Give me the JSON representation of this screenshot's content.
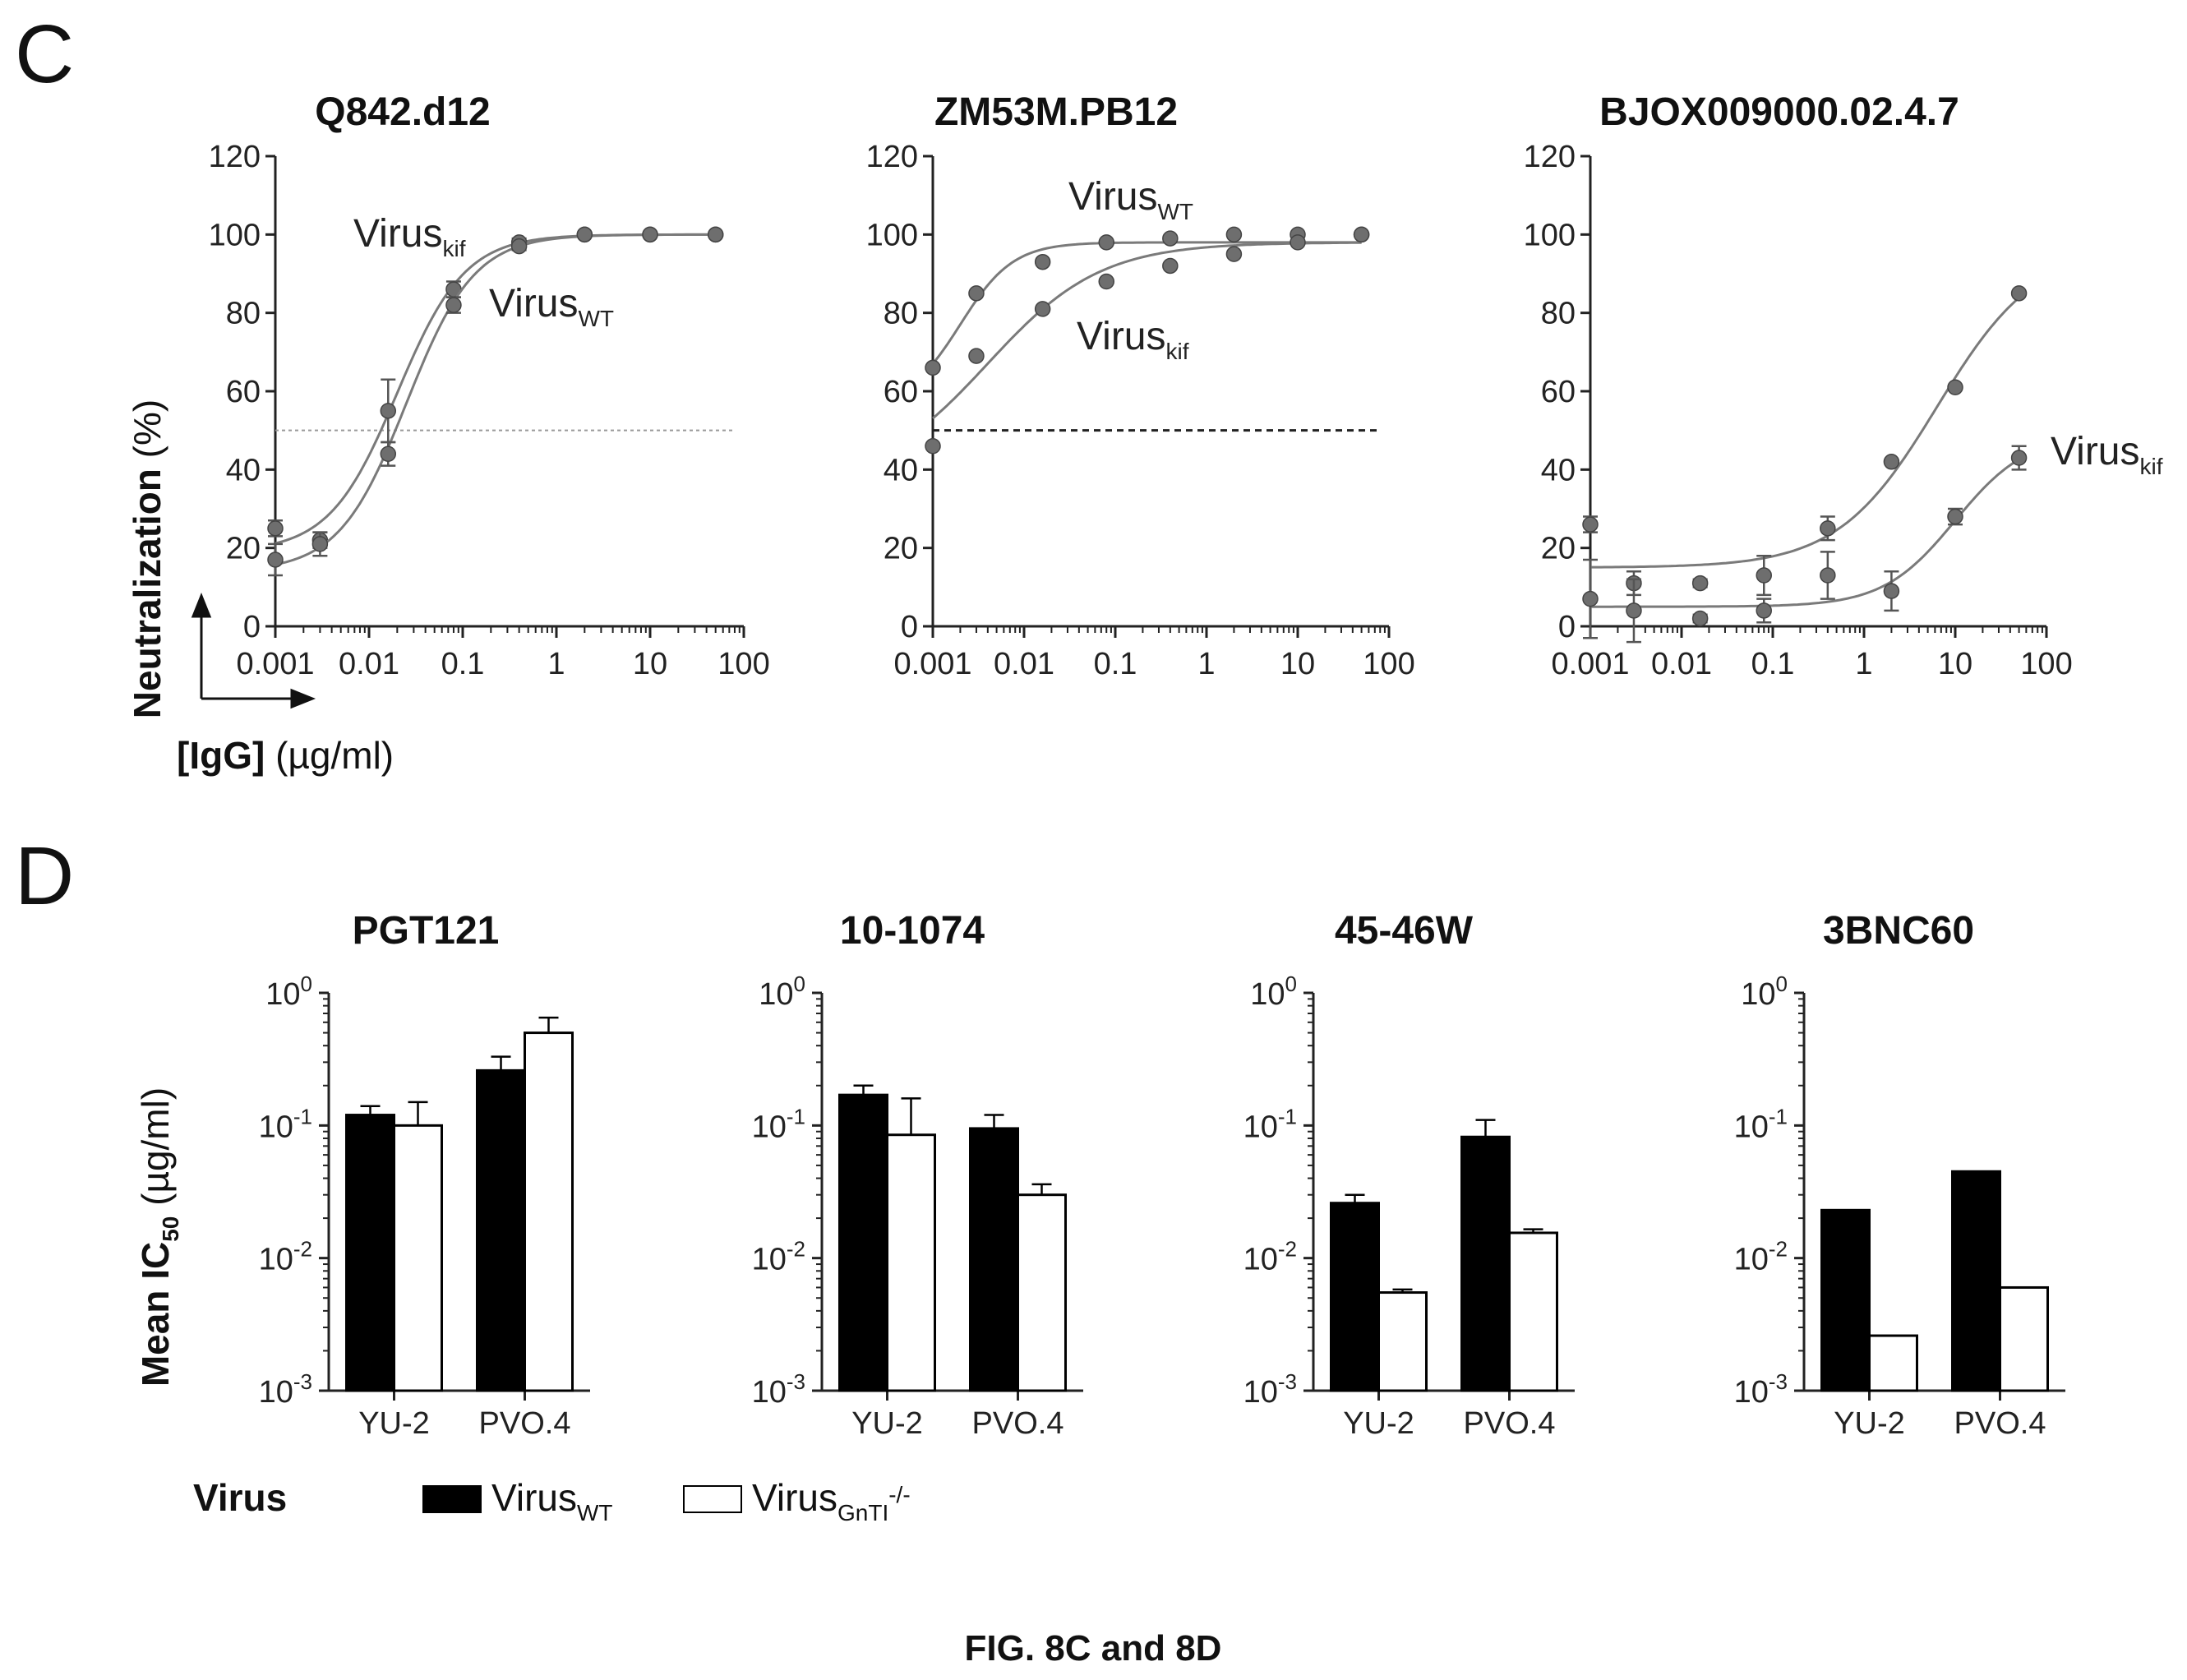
{
  "figure_caption": "FIG. 8C and 8D",
  "panel_c": {
    "letter": "C",
    "ylabel_bold": "Neutralization",
    "ylabel_unit": " (%)",
    "xlabel_bold": "[IgG]",
    "xlabel_unit": " (µg/ml)"
  },
  "panel_d": {
    "letter": "D",
    "ylabel_main": "Mean IC",
    "ylabel_sub": "50",
    "ylabel_unit": " (µg/ml)",
    "legend": {
      "title": "Virus",
      "items": [
        {
          "base": "Virus",
          "sub": "WT",
          "sup": "",
          "color": "#000000"
        },
        {
          "base": "Virus",
          "sub": "GnTI",
          "sup": "-/-",
          "color": "#ffffff"
        }
      ]
    }
  },
  "chart_data": [
    {
      "type": "scatter",
      "panel": "C",
      "title": "Q842.d12",
      "xscale": "log",
      "xlim": [
        0.001,
        100
      ],
      "ylim": [
        0,
        120
      ],
      "x_ticks": [
        "0.001",
        "0.01",
        "0.1",
        "1",
        "10",
        "100"
      ],
      "y_ticks": [
        "0",
        "20",
        "40",
        "60",
        "80",
        "100",
        "120"
      ],
      "reference_line": 50,
      "series": [
        {
          "name": "Virus_kif",
          "label_base": "Virus",
          "label_sub": "kif",
          "x": [
            0.001,
            0.003,
            0.016,
            0.08,
            0.4,
            2,
            10,
            50
          ],
          "y": [
            25,
            22,
            55,
            86,
            98,
            100,
            100,
            100
          ],
          "err": [
            2,
            2,
            8,
            2,
            1,
            0,
            0,
            0
          ]
        },
        {
          "name": "Virus_WT",
          "label_base": "Virus",
          "label_sub": "WT",
          "x": [
            0.001,
            0.003,
            0.016,
            0.08,
            0.4,
            2,
            10,
            50
          ],
          "y": [
            17,
            21,
            44,
            82,
            97,
            100,
            100,
            100
          ],
          "err": [
            4,
            3,
            3,
            2,
            1,
            0,
            0,
            0
          ]
        }
      ]
    },
    {
      "type": "scatter",
      "panel": "C",
      "title": "ZM53M.PB12",
      "xscale": "log",
      "xlim": [
        0.001,
        100
      ],
      "ylim": [
        0,
        120
      ],
      "x_ticks": [
        "0.001",
        "0.01",
        "0.1",
        "1",
        "10",
        "100"
      ],
      "y_ticks": [
        "0",
        "20",
        "40",
        "60",
        "80",
        "100",
        "120"
      ],
      "reference_line": 50,
      "series": [
        {
          "name": "Virus_WT",
          "label_base": "Virus",
          "label_sub": "WT",
          "x": [
            0.001,
            0.003,
            0.016,
            0.08,
            0.4,
            2,
            10,
            50
          ],
          "y": [
            66,
            85,
            93,
            98,
            99,
            100,
            100,
            100
          ],
          "err": [
            0,
            0,
            0,
            0,
            0,
            0,
            0,
            0
          ]
        },
        {
          "name": "Virus_kif",
          "label_base": "Virus",
          "label_sub": "kif",
          "x": [
            0.001,
            0.003,
            0.016,
            0.08,
            0.4,
            2,
            10,
            50
          ],
          "y": [
            46,
            69,
            81,
            88,
            92,
            95,
            98,
            100
          ],
          "err": [
            0,
            0,
            0,
            0,
            0,
            0,
            0,
            0
          ]
        }
      ]
    },
    {
      "type": "scatter",
      "panel": "C",
      "title": "BJOX009000.02.4.7",
      "xscale": "log",
      "xlim": [
        0.001,
        100
      ],
      "ylim": [
        0,
        120
      ],
      "x_ticks": [
        "0.001",
        "0.01",
        "0.1",
        "1",
        "10",
        "100"
      ],
      "y_ticks": [
        "0",
        "20",
        "40",
        "60",
        "80",
        "100",
        "120"
      ],
      "series": [
        {
          "name": "upper curve",
          "label_base": "",
          "label_sub": "",
          "x": [
            0.001,
            0.003,
            0.016,
            0.08,
            0.4,
            2,
            10,
            50
          ],
          "y": [
            26,
            11,
            11,
            13,
            25,
            42,
            61,
            85
          ],
          "err": [
            2,
            3,
            1,
            5,
            3,
            0,
            0,
            0
          ]
        },
        {
          "name": "Virus_kif",
          "label_base": "Virus",
          "label_sub": "kif",
          "x": [
            0.001,
            0.003,
            0.016,
            0.08,
            0.4,
            2,
            10,
            50
          ],
          "y": [
            7,
            4,
            2,
            4,
            13,
            9,
            28,
            43
          ],
          "err": [
            10,
            8,
            1,
            3,
            6,
            5,
            2,
            3
          ]
        }
      ]
    },
    {
      "type": "bar",
      "panel": "D",
      "title": "PGT121",
      "yscale": "log",
      "ylim": [
        0.001,
        1
      ],
      "categories": [
        "YU-2",
        "PVO.4"
      ],
      "series": [
        {
          "name": "Virus_WT",
          "values": [
            0.12,
            0.26
          ],
          "err_upper": [
            0.14,
            0.33
          ]
        },
        {
          "name": "Virus_GnTI-/-",
          "values": [
            0.1,
            0.5
          ],
          "err_upper": [
            0.15,
            0.65
          ]
        }
      ]
    },
    {
      "type": "bar",
      "panel": "D",
      "title": "10-1074",
      "yscale": "log",
      "ylim": [
        0.001,
        1
      ],
      "categories": [
        "YU-2",
        "PVO.4"
      ],
      "series": [
        {
          "name": "Virus_WT",
          "values": [
            0.17,
            0.095
          ],
          "err_upper": [
            0.2,
            0.12
          ]
        },
        {
          "name": "Virus_GnTI-/-",
          "values": [
            0.085,
            0.03
          ],
          "err_upper": [
            0.16,
            0.036
          ]
        }
      ]
    },
    {
      "type": "bar",
      "panel": "D",
      "title": "45-46W",
      "yscale": "log",
      "ylim": [
        0.001,
        1
      ],
      "categories": [
        "YU-2",
        "PVO.4"
      ],
      "series": [
        {
          "name": "Virus_WT",
          "values": [
            0.026,
            0.082
          ],
          "err_upper": [
            0.03,
            0.11
          ]
        },
        {
          "name": "Virus_GnTI-/-",
          "values": [
            0.0055,
            0.0155
          ],
          "err_upper": [
            0.0058,
            0.0165
          ]
        }
      ]
    },
    {
      "type": "bar",
      "panel": "D",
      "title": "3BNC60",
      "yscale": "log",
      "ylim": [
        0.001,
        1
      ],
      "categories": [
        "YU-2",
        "PVO.4"
      ],
      "series": [
        {
          "name": "Virus_WT",
          "values": [
            0.023,
            0.045
          ],
          "err_upper": [
            0.023,
            0.045
          ]
        },
        {
          "name": "Virus_GnTI-/-",
          "values": [
            0.0026,
            0.006
          ],
          "err_upper": [
            0.0026,
            0.006
          ]
        }
      ]
    }
  ]
}
